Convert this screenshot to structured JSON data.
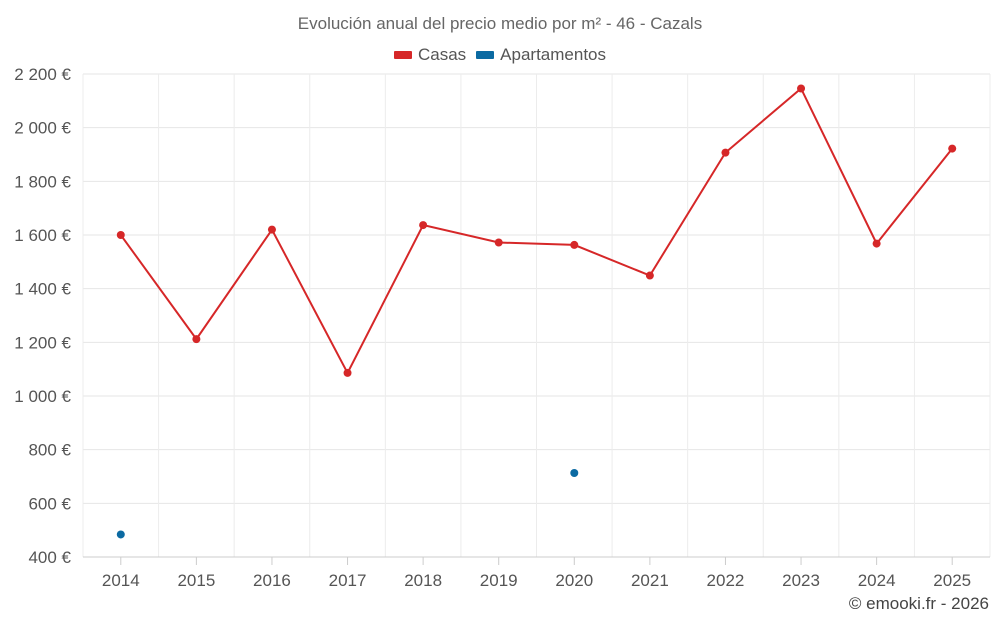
{
  "chart_data": {
    "type": "line",
    "title": "Evolución anual del precio medio por m² - 46 - Cazals",
    "categories": [
      "2014",
      "2015",
      "2016",
      "2017",
      "2018",
      "2019",
      "2020",
      "2021",
      "2022",
      "2023",
      "2024",
      "2025"
    ],
    "series": [
      {
        "name": "Casas",
        "color": "#d62728",
        "values": [
          1600,
          1212,
          1620,
          1086,
          1637,
          1572,
          1563,
          1449,
          1907,
          2146,
          1568,
          1922
        ]
      },
      {
        "name": "Apartamentos",
        "color": "#0b6aa2",
        "values": [
          484,
          null,
          null,
          null,
          null,
          null,
          713,
          null,
          null,
          null,
          null,
          null
        ]
      }
    ],
    "yticks": [
      "2 200 €",
      "2 000 €",
      "1 800 €",
      "1 600 €",
      "1 400 €",
      "1 200 €",
      "1 000 €",
      "800 €",
      "600 €",
      "400 €"
    ],
    "ylim": [
      400,
      2200
    ],
    "xlabel": "",
    "ylabel": "",
    "legend": "top-center"
  },
  "credit": "© emooki.fr - 2026"
}
